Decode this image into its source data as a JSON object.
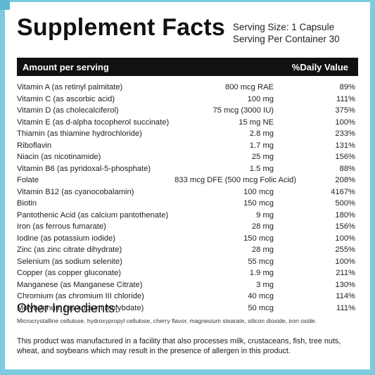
{
  "panel": {
    "title": "Supplement Facts",
    "serving_size": "Serving Size: 1 Capsule",
    "servings_per_container": "Serving Per Container 30",
    "header_left": "Amount per serving",
    "header_right": "%Daily Value"
  },
  "nutrients": [
    {
      "name": "Vitamin A (as retinyl palmitate)",
      "amount": "800 mcg RAE",
      "dv": "89%"
    },
    {
      "name": "Vitamin C (as ascorbic acid)",
      "amount": "100 mg",
      "dv": "111%"
    },
    {
      "name": "Vitamin D (as cholecalciferol)",
      "amount": "75 mcg (3000 IU)",
      "dv": "375%"
    },
    {
      "name": "Vitamin E (as d-alpha tocopherol succinate)",
      "amount": "15 mg NE",
      "dv": "100%"
    },
    {
      "name": "Thiamin (as thiamine hydrochloride)",
      "amount": "2.8 mg",
      "dv": "233%"
    },
    {
      "name": "Riboflavin",
      "amount": "1.7 mg",
      "dv": "131%"
    },
    {
      "name": "Niacin (as nicotinamide)",
      "amount": "25 mg",
      "dv": "156%"
    },
    {
      "name": "Vitamin B6 (as pyridoxal-5-phosphate)",
      "amount": "1.5 mg",
      "dv": "88%"
    },
    {
      "name": "Folate",
      "amount": "833 mcg DFE (500 mcg Folic Acid)",
      "dv": "208%"
    },
    {
      "name": "Vitamin B12 (as cyanocobalamin)",
      "amount": "100 mcg",
      "dv": "4167%"
    },
    {
      "name": "Biotin",
      "amount": "150 mcg",
      "dv": "500%"
    },
    {
      "name": "Pantothenic Acid (as calcium pantothenate)",
      "amount": "9 mg",
      "dv": "180%"
    },
    {
      "name": "Iron (as ferrous fumarate)",
      "amount": "28 mg",
      "dv": "156%"
    },
    {
      "name": "Iodine (as potassium iodide)",
      "amount": "150 mcg",
      "dv": "100%"
    },
    {
      "name": "Zinc (as zinc citrate dihydrate)",
      "amount": "28 mg",
      "dv": "255%"
    },
    {
      "name": "Selenium (as sodium selenite)",
      "amount": "55 mcg",
      "dv": "100%"
    },
    {
      "name": "Copper (as copper gluconate)",
      "amount": "1.9 mg",
      "dv": "211%"
    },
    {
      "name": "Manganese (as Manganese Citrate)",
      "amount": "3 mg",
      "dv": "130%"
    },
    {
      "name": "Chromium (as chromium III chloride)",
      "amount": "40 mcg",
      "dv": "114%"
    },
    {
      "name": "Molybdenum (as sodium molybdate)",
      "amount": "50 mcg",
      "dv": "111%"
    }
  ],
  "other_ingredients": {
    "title": "Other Ingredients:",
    "text": "Microcrystalline cellulose, hydroxypropyl cellulose, cherry flavor, magnesium stearate, silicon dioxide, iron oxide."
  },
  "allergen_statement": "This product was manufactured in a facility that also processes milk, crustaceans, fish, tree nuts, wheat, and soybeans which may result in the presence of allergen in this product.",
  "colors": {
    "border": "#7ecbe0",
    "header_bg": "#111111",
    "header_text": "#ffffff"
  }
}
